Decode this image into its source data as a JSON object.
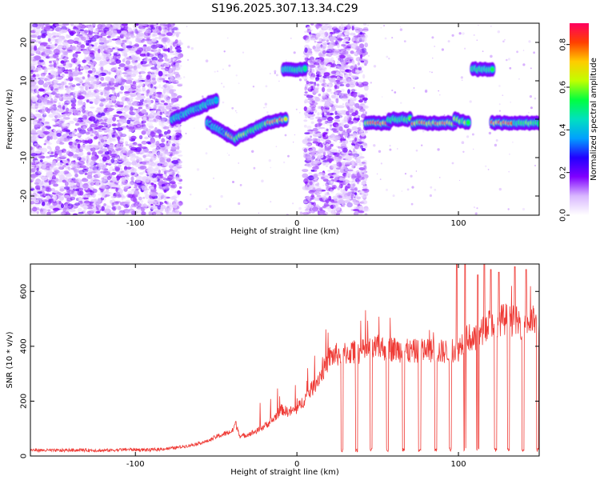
{
  "title": "S196.2025.307.13.34.C29",
  "chart_data": [
    {
      "type": "heatmap",
      "name": "spectrogram",
      "xlabel": "Height of straight line (km)",
      "ylabel": "Frequency (Hz)",
      "xlim": [
        -165,
        150
      ],
      "ylim": [
        -25,
        25
      ],
      "xticks": [
        {
          "v": -100,
          "label": "-100"
        },
        {
          "v": 0,
          "label": "0"
        },
        {
          "v": 100,
          "label": "100"
        }
      ],
      "yticks": [
        {
          "v": -20,
          "label": "-20"
        },
        {
          "v": -10,
          "label": "-10"
        },
        {
          "v": 0,
          "label": "0"
        },
        {
          "v": 10,
          "label": "10"
        },
        {
          "v": 20,
          "label": "20"
        }
      ],
      "colorbar": {
        "label": "Normalized spectral amplitude",
        "range": [
          0.0,
          0.9
        ],
        "ticks": [
          {
            "v": 0.0,
            "label": "0.0"
          },
          {
            "v": 0.2,
            "label": "0.2"
          },
          {
            "v": 0.4,
            "label": "0.4"
          },
          {
            "v": 0.6,
            "label": "0.6"
          },
          {
            "v": 0.8,
            "label": "0.8"
          }
        ],
        "colors": [
          "#ffffff",
          "#d9b8ff",
          "#8000ff",
          "#2200ff",
          "#00a0ff",
          "#00e0c0",
          "#00ff40",
          "#c0ff00",
          "#ffcc00",
          "#ff4000",
          "#ff0060"
        ]
      },
      "noise_regions": [
        {
          "x": [
            -165,
            -72
          ],
          "y": [
            -25,
            25
          ]
        },
        {
          "x": [
            5,
            43
          ],
          "y": [
            -25,
            25
          ]
        }
      ],
      "segments": [
        {
          "x": [
            -77,
            -50
          ],
          "f": [
            0,
            5
          ],
          "peak": 0.45
        },
        {
          "x": [
            -55,
            -43
          ],
          "f": [
            -1,
            -4
          ],
          "peak": 0.4
        },
        {
          "x": [
            -43,
            -38
          ],
          "f": [
            -4,
            -5
          ],
          "peak": 0.85
        },
        {
          "x": [
            -38,
            -28
          ],
          "f": [
            -5,
            -3
          ],
          "peak": 0.7
        },
        {
          "x": [
            -28,
            -19
          ],
          "f": [
            -3,
            -1
          ],
          "peak": 0.6
        },
        {
          "x": [
            -19,
            -7
          ],
          "f": [
            -1,
            0
          ],
          "peak": 0.85
        },
        {
          "x": [
            -8,
            5
          ],
          "f": [
            13,
            13
          ],
          "peak": 0.5
        },
        {
          "x": [
            43,
            57
          ],
          "f": [
            -1,
            -1
          ],
          "peak": 0.85
        },
        {
          "x": [
            57,
            70
          ],
          "f": [
            0,
            0
          ],
          "peak": 0.6
        },
        {
          "x": [
            72,
            84
          ],
          "f": [
            -1,
            -1
          ],
          "peak": 0.85
        },
        {
          "x": [
            85,
            98
          ],
          "f": [
            -1,
            -1
          ],
          "peak": 0.85
        },
        {
          "x": [
            98,
            106
          ],
          "f": [
            0,
            -1
          ],
          "peak": 0.7
        },
        {
          "x": [
            109,
            121
          ],
          "f": [
            13,
            13
          ],
          "peak": 0.55
        },
        {
          "x": [
            121,
            133
          ],
          "f": [
            -1,
            -1
          ],
          "peak": 0.85
        },
        {
          "x": [
            135,
            150
          ],
          "f": [
            -1,
            -1
          ],
          "peak": 0.6
        }
      ]
    },
    {
      "type": "line",
      "name": "snr",
      "xlabel": "Height of straight line (km)",
      "ylabel": "SNR (10 * v/v)",
      "xlim": [
        -165,
        150
      ],
      "ylim": [
        0,
        700
      ],
      "xticks": [
        {
          "v": -100,
          "label": "-100"
        },
        {
          "v": 0,
          "label": "0"
        },
        {
          "v": 100,
          "label": "100"
        }
      ],
      "yticks": [
        {
          "v": 0,
          "label": "0"
        },
        {
          "v": 200,
          "label": "200"
        },
        {
          "v": 400,
          "label": "400"
        },
        {
          "v": 600,
          "label": "600"
        }
      ],
      "color": "#ef3b36",
      "series": [
        {
          "name": "SNR",
          "x": [
            -165,
            -150,
            -135,
            -120,
            -105,
            -90,
            -75,
            -65,
            -55,
            -50,
            -45,
            -40,
            -38,
            -35,
            -30,
            -25,
            -20,
            -15,
            -10,
            -5,
            0,
            5,
            10,
            15,
            18,
            20,
            25,
            30,
            40,
            50,
            60,
            70,
            80,
            90,
            95,
            100,
            105,
            110,
            120,
            130,
            140,
            150
          ],
          "y": [
            22,
            20,
            22,
            20,
            24,
            22,
            30,
            40,
            55,
            70,
            80,
            90,
            120,
            70,
            80,
            90,
            110,
            130,
            170,
            160,
            170,
            210,
            250,
            300,
            330,
            360,
            370,
            375,
            380,
            395,
            390,
            380,
            385,
            380,
            385,
            390,
            440,
            420,
            490,
            500,
            480,
            500
          ]
        }
      ],
      "dropouts": [
        28,
        37,
        46,
        56,
        66,
        76,
        86,
        95,
        104,
        112,
        123,
        131,
        140,
        149
      ],
      "spikes": [
        {
          "x": 99,
          "y": 700
        },
        {
          "x": 104,
          "y": 700
        },
        {
          "x": 112,
          "y": 660
        },
        {
          "x": 116,
          "y": 700
        },
        {
          "x": 120,
          "y": 680
        },
        {
          "x": 125,
          "y": 670
        },
        {
          "x": 135,
          "y": 690
        },
        {
          "x": 142,
          "y": 680
        }
      ]
    }
  ]
}
